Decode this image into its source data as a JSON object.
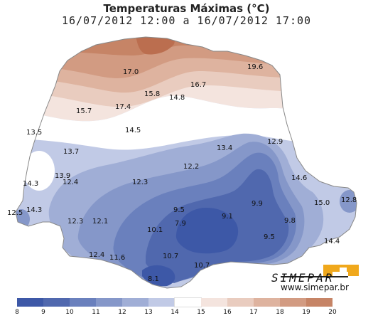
{
  "title": "Temperaturas Máximas (°C)",
  "subtitle": "16/07/2012 12:00 a 16/07/2012 17:00",
  "logo": {
    "name": "SIMEPAR",
    "url": "www.simepar.br"
  },
  "legend": {
    "ticks": [
      "8",
      "9",
      "10",
      "11",
      "12",
      "13",
      "14",
      "15",
      "16",
      "17",
      "18",
      "19",
      "20"
    ],
    "colors": [
      "#3d58a7",
      "#5068ae",
      "#6a80bd",
      "#8597c9",
      "#a0aed6",
      "#c1cae6",
      "#ffffff",
      "#f4e4de",
      "#e9ccbf",
      "#deb39f",
      "#d29b82",
      "#c68466",
      "#bb6e4f"
    ]
  },
  "labels": [
    {
      "id": "l1",
      "text": "19.6"
    },
    {
      "id": "l2",
      "text": "17.0"
    },
    {
      "id": "l3",
      "text": "16.7"
    },
    {
      "id": "l4",
      "text": "15.8"
    },
    {
      "id": "l5",
      "text": "14.8"
    },
    {
      "id": "l6",
      "text": "17.4"
    },
    {
      "id": "l7",
      "text": "15.7"
    },
    {
      "id": "l8",
      "text": "13.5"
    },
    {
      "id": "l9",
      "text": "14.5"
    },
    {
      "id": "l10",
      "text": "13.7"
    },
    {
      "id": "l11",
      "text": "13.4"
    },
    {
      "id": "l12",
      "text": "12.9"
    },
    {
      "id": "l13",
      "text": "12.2"
    },
    {
      "id": "l14",
      "text": "13.9"
    },
    {
      "id": "l15",
      "text": "14.3"
    },
    {
      "id": "l16",
      "text": "12.4"
    },
    {
      "id": "l17",
      "text": "12.3"
    },
    {
      "id": "l18",
      "text": "14.6"
    },
    {
      "id": "l19",
      "text": "12.5"
    },
    {
      "id": "l20",
      "text": "14.3"
    },
    {
      "id": "l21",
      "text": "9.5"
    },
    {
      "id": "l22",
      "text": "9.9"
    },
    {
      "id": "l23",
      "text": "15.0"
    },
    {
      "id": "l24",
      "text": "12.8"
    },
    {
      "id": "l25",
      "text": "12.3"
    },
    {
      "id": "l26",
      "text": "12.1"
    },
    {
      "id": "l27",
      "text": "9.1"
    },
    {
      "id": "l28",
      "text": "7.9"
    },
    {
      "id": "l29",
      "text": "9.8"
    },
    {
      "id": "l30",
      "text": "10.1"
    },
    {
      "id": "l31",
      "text": "9.5"
    },
    {
      "id": "l32",
      "text": "14.4"
    },
    {
      "id": "l33",
      "text": "12.4"
    },
    {
      "id": "l34",
      "text": "11.6"
    },
    {
      "id": "l35",
      "text": "10.7"
    },
    {
      "id": "l36",
      "text": "10.7"
    },
    {
      "id": "l37",
      "text": "8.1"
    }
  ]
}
